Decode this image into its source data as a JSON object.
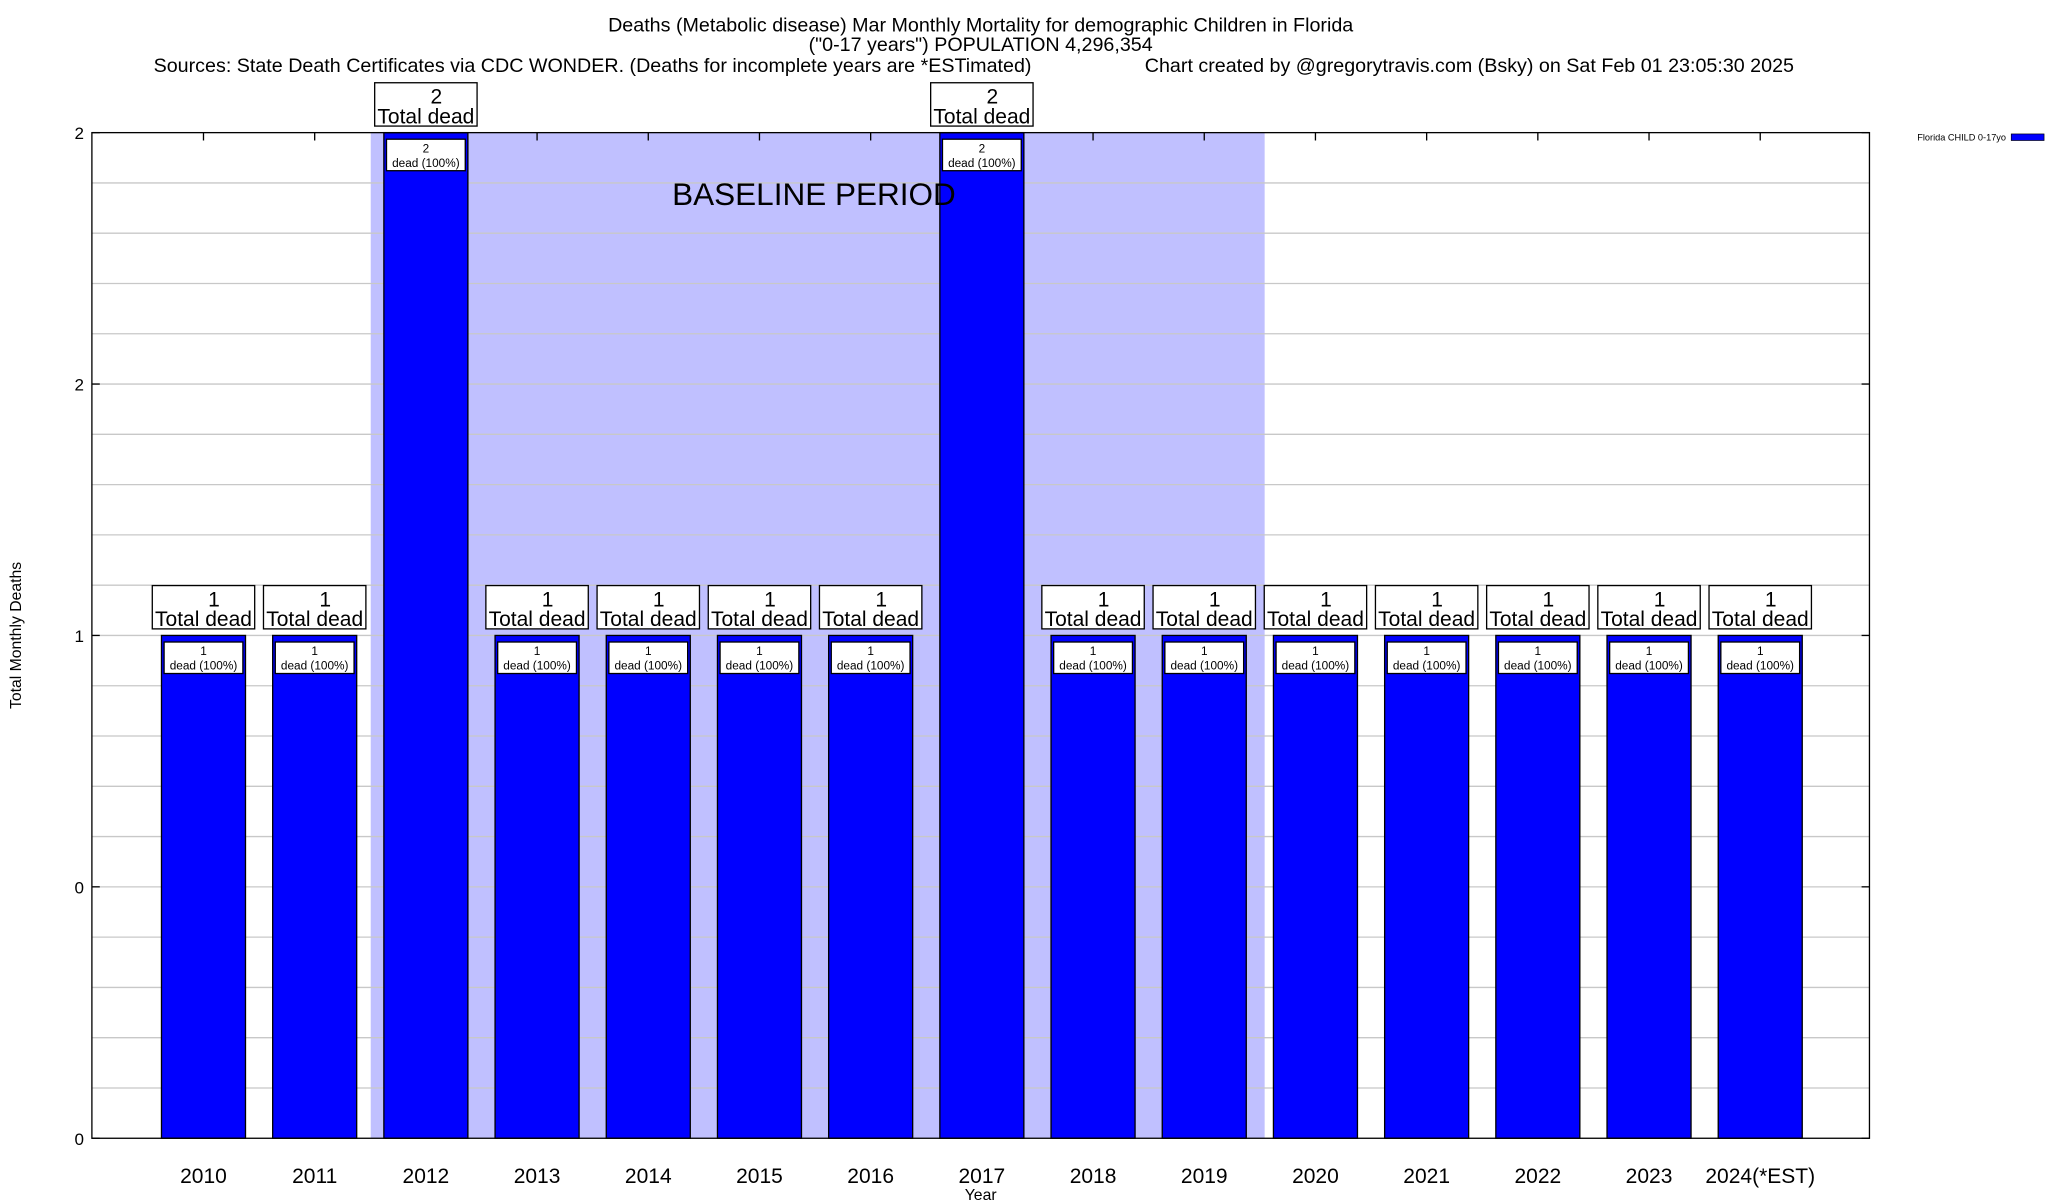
{
  "chart_data": {
    "type": "bar",
    "title": "Deaths (Metabolic disease) Mar Monthly Mortality for demographic Children in Florida",
    "subtitle": "(\"0-17 years\") POPULATION 4,296,354",
    "source": "Sources: State Death Certificates via CDC WONDER. (Deaths for incomplete years are *ESTimated)",
    "credit": "Chart created by @gregorytravis.com (Bsky) on Sat Feb 01 23:05:30 2025",
    "xlabel": "Year",
    "ylabel": "Total Monthly Deaths",
    "ylim": [
      0,
      2
    ],
    "ytick_values": [
      0,
      0.5,
      1,
      1.5,
      2
    ],
    "ytick_labels": [
      "0",
      "0",
      "1",
      "2",
      "2"
    ],
    "grid": true,
    "legend": {
      "position": "right",
      "entries": [
        {
          "label": "Florida CHILD 0-17yo",
          "color": "#0000ff"
        }
      ]
    },
    "annotation": {
      "text": "BASELINE PERIOD",
      "from": "2012",
      "to": "2019",
      "color": "#c0c0ff"
    },
    "categories": [
      "2010",
      "2011",
      "2012",
      "2013",
      "2014",
      "2015",
      "2016",
      "2017",
      "2018",
      "2019",
      "2020",
      "2021",
      "2022",
      "2023",
      "2024(*EST)"
    ],
    "series": [
      {
        "name": "Florida CHILD 0-17yo",
        "color": "#0000ff",
        "values": [
          1,
          1,
          2,
          1,
          1,
          1,
          1,
          2,
          1,
          1,
          1,
          1,
          1,
          1,
          1
        ]
      }
    ],
    "total_label": "Total dead",
    "inner_label": "dead (100%)"
  }
}
